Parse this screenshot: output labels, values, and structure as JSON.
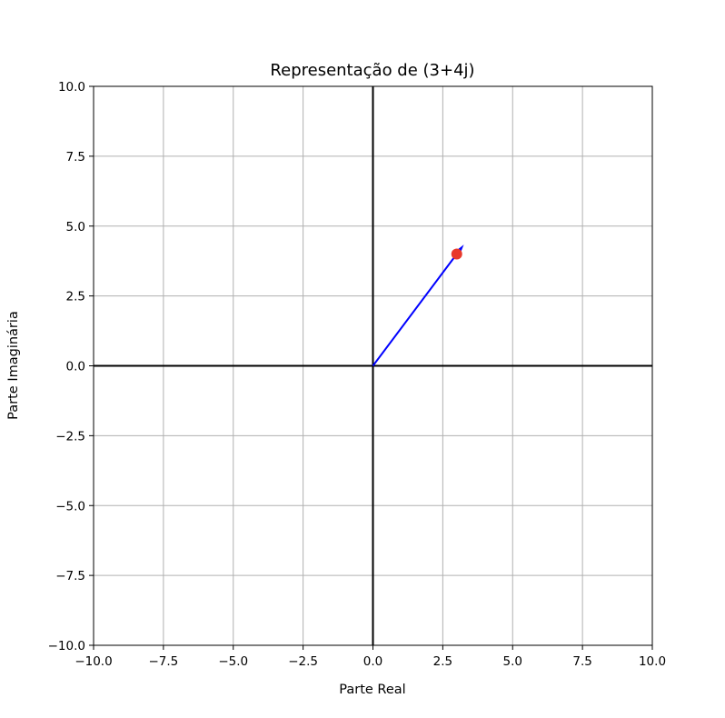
{
  "chart_data": {
    "type": "scatter",
    "title": "Representação de (3+4j)",
    "xlabel": "Parte Real",
    "ylabel": "Parte Imaginária",
    "xlim": [
      -10,
      10
    ],
    "ylim": [
      -10,
      10
    ],
    "xticks": [
      -10,
      -7.5,
      -5,
      -2.5,
      0,
      2.5,
      5,
      7.5,
      10
    ],
    "yticks": [
      -10,
      -7.5,
      -5,
      -2.5,
      0,
      2.5,
      5,
      7.5,
      10
    ],
    "xtick_labels": [
      "−10.0",
      "−7.5",
      "−5.0",
      "−2.5",
      "0.0",
      "2.5",
      "5.0",
      "7.5",
      "10.0"
    ],
    "ytick_labels": [
      "−10.0",
      "−7.5",
      "−5.0",
      "−2.5",
      "0.0",
      "2.5",
      "5.0",
      "7.5",
      "10.0"
    ],
    "grid": true,
    "reference_lines": {
      "x": 0,
      "y": 0,
      "color": "#000000"
    },
    "vector": {
      "from": [
        0,
        0
      ],
      "to": [
        3,
        4
      ],
      "color": "#0000ff"
    },
    "point": {
      "x": 3,
      "y": 4,
      "color": "#e8392c"
    },
    "colors": {
      "grid": "#b0b0b0",
      "spine": "#000000"
    }
  }
}
